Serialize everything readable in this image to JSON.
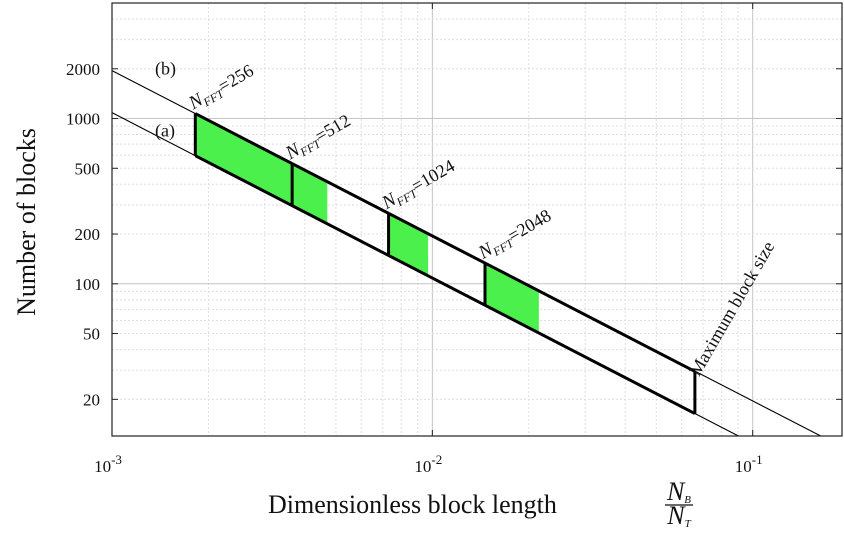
{
  "chart_data": {
    "type": "line",
    "xscale": "log",
    "yscale": "log",
    "xlim": [
      0.001,
      0.19
    ],
    "ylim": [
      12,
      5000
    ],
    "grid": true,
    "xlabel": "Dimensionless block length",
    "xlabel_fraction": {
      "num_base": "N",
      "num_sub": "B",
      "den_base": "N",
      "den_sub": "T"
    },
    "ylabel": "Number of blocks",
    "xticks": [
      {
        "value": 0.001,
        "base": "10",
        "exp": "-3"
      },
      {
        "value": 0.01,
        "base": "10",
        "exp": "-2"
      },
      {
        "value": 0.1,
        "base": "10",
        "exp": "-1"
      }
    ],
    "yticks": [
      20,
      50,
      100,
      200,
      500,
      1000,
      2000
    ],
    "series": [
      {
        "name": "(b)",
        "x": [
          0.001,
          0.19
        ],
        "y": [
          1950,
          10.3
        ]
      },
      {
        "name": "(a)",
        "x": [
          0.001,
          0.19
        ],
        "y": [
          1085,
          5.7
        ]
      }
    ],
    "region": {
      "x_min": 0.00182,
      "x_max": 0.066,
      "upper_at_xmin": 1071,
      "lower_at_xmin": 596,
      "upper_at_xmax": 29.5,
      "lower_at_xmax": 16.4,
      "label": "Maximum block size"
    },
    "nfft_groups": [
      {
        "label_base": "N",
        "label_sub": "FFT",
        "value": "=256",
        "x": 0.00182,
        "green_to": 0.00365
      },
      {
        "label_base": "N",
        "label_sub": "FFT",
        "value": "=512",
        "x": 0.00365,
        "green_to": 0.0047
      },
      {
        "label_base": "N",
        "label_sub": "FFT",
        "value": "=1024",
        "x": 0.0073,
        "green_to": 0.0097
      },
      {
        "label_base": "N",
        "label_sub": "FFT",
        "value": "=2048",
        "x": 0.0146,
        "green_to": 0.0215
      }
    ],
    "colors": {
      "fill": "#4cf04c",
      "line": "#000000",
      "grid": "#c8c8c8"
    }
  }
}
